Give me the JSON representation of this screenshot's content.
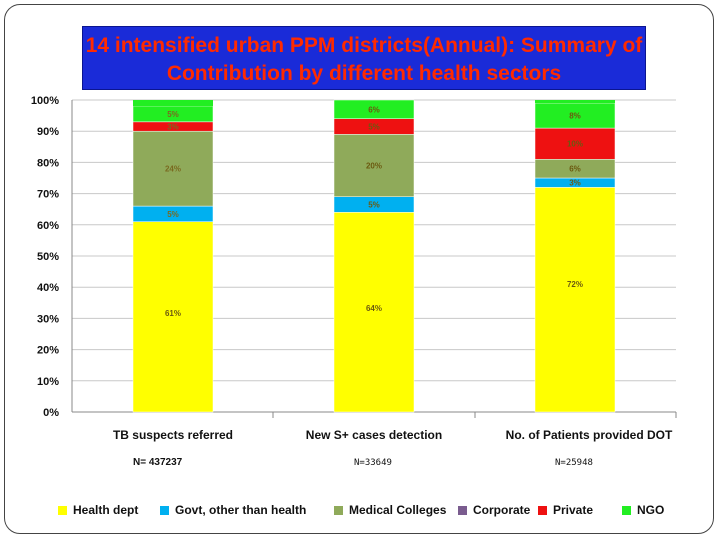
{
  "slide": {
    "title_line1": "14 intensified urban PPM districts(Annual): Summary of",
    "title_line2": "Contribution by different health sectors"
  },
  "chart_data": {
    "type": "bar",
    "stacked": true,
    "percent_stacked": true,
    "categories": [
      "TB suspects referred",
      "New S+ cases detection",
      "No. of Patients provided  DOT"
    ],
    "n_labels": [
      "N= 437237",
      "N=33649",
      "N=25948"
    ],
    "series": [
      {
        "name": "Health dept",
        "color": "#ffff00",
        "values": [
          61,
          64,
          72
        ],
        "labels": [
          "61%",
          "64%",
          "72%"
        ]
      },
      {
        "name": "Govt, other than health",
        "color": "#00b0f0",
        "values": [
          5,
          5,
          3
        ],
        "labels": [
          "5%",
          "5%",
          "3%"
        ]
      },
      {
        "name": "Medical Colleges",
        "color": "#8faa5a",
        "values": [
          24,
          20,
          6
        ],
        "labels": [
          "24%",
          "20%",
          "6%"
        ]
      },
      {
        "name": "Corporate",
        "color": "#7a5c8f",
        "values": [
          0,
          0,
          0
        ],
        "labels": [
          "",
          "",
          ""
        ]
      },
      {
        "name": "Private",
        "color": "#ee1111",
        "values": [
          3,
          5,
          10
        ],
        "labels": [
          "3%",
          "5%",
          "10%"
        ]
      },
      {
        "name": "NGO",
        "color": "#22ee22",
        "values": [
          5,
          6,
          8
        ],
        "labels": [
          "5%",
          "6%",
          "8%"
        ]
      }
    ],
    "y_ticks": [
      "0%",
      "10%",
      "20%",
      "30%",
      "40%",
      "50%",
      "60%",
      "70%",
      "80%",
      "90%",
      "100%"
    ],
    "ylim": [
      0,
      100
    ],
    "grid": true,
    "legend_position": "bottom"
  }
}
